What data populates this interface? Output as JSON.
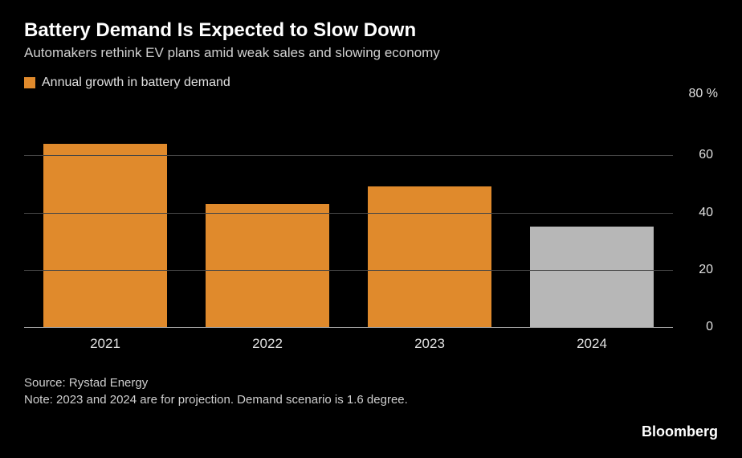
{
  "header": {
    "title": "Battery Demand Is Expected to Slow Down",
    "subtitle": "Automakers rethink EV plans amid weak sales and slowing economy"
  },
  "legend": {
    "swatch_color": "#e08a2c",
    "label": "Annual growth in battery demand"
  },
  "chart": {
    "type": "bar",
    "y_unit": "80 %",
    "ylim_max": 80,
    "ytick_step": 20,
    "yticks": [
      0,
      20,
      40,
      60
    ],
    "grid_color": "#454545",
    "axis_color": "#aaaaaa",
    "background_color": "#000000",
    "bar_width_pct": 76,
    "categories": [
      "2021",
      "2022",
      "2023",
      "2024"
    ],
    "values": [
      64,
      43,
      49,
      35
    ],
    "bar_colors": [
      "#e08a2c",
      "#e08a2c",
      "#e08a2c",
      "#b7b7b7"
    ],
    "label_fontsize": 17,
    "tick_fontsize": 16,
    "tick_color": "#e0e0e0"
  },
  "footer": {
    "source": "Source: Rystad Energy",
    "note": "Note: 2023 and 2024 are for projection. Demand scenario is 1.6 degree."
  },
  "brand": "Bloomberg"
}
